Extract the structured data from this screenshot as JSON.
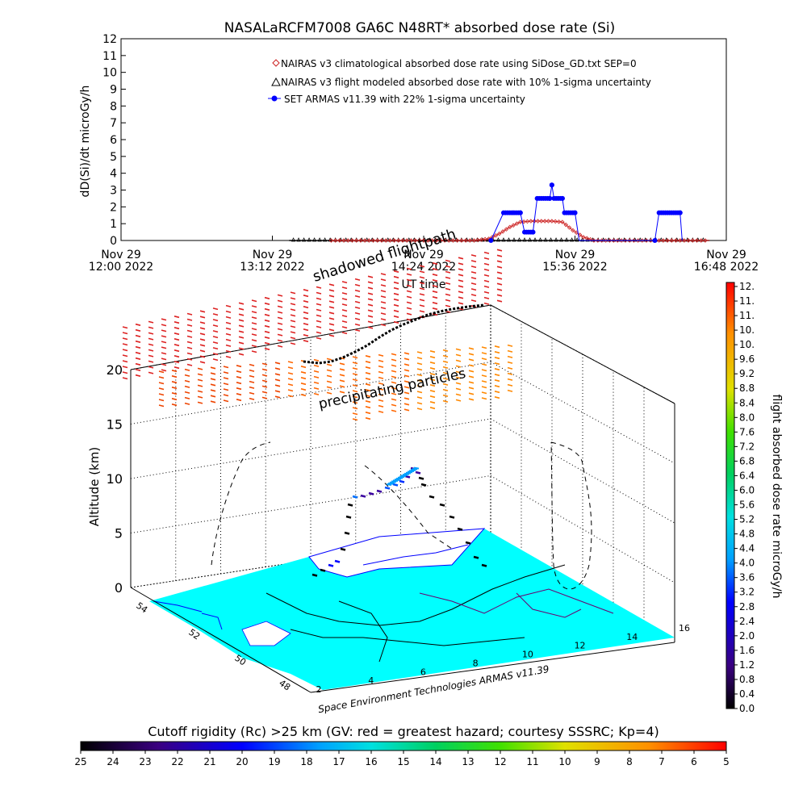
{
  "title": "NASALaRCFM7008  GA6C N48RT* absorbed dose rate (Si)",
  "chart_data": [
    {
      "type": "line",
      "ylabel": "dD(Si)/dt microGy/h",
      "xlabel": "UT time",
      "ylim": [
        0,
        12
      ],
      "y_ticks": [
        "0",
        "1",
        "2",
        "3",
        "4",
        "5",
        "6",
        "7",
        "8",
        "9",
        "10",
        "11",
        "12"
      ],
      "x_ticks": [
        {
          "top": "Nov 29",
          "bottom": "12:00 2022",
          "t": 720
        },
        {
          "top": "Nov 29",
          "bottom": "13:12 2022",
          "t": 792
        },
        {
          "top": "Nov 29",
          "bottom": "14:24 2022",
          "t": 864
        },
        {
          "top": "Nov 29",
          "bottom": "15:36 2022",
          "t": 936
        },
        {
          "top": "Nov 29",
          "bottom": "16:48 2022",
          "t": 1008
        }
      ],
      "xlim_minutes_utc": [
        720,
        1008
      ],
      "legend_position": "top-center",
      "series": [
        {
          "name": "NAIRAS v3 climatological absorbed dose rate using SiDose_GD.txt SEP=0",
          "marker": "diamond",
          "color": "#cc2222",
          "points": [
            [
              820,
              0
            ],
            [
              830,
              0
            ],
            [
              840,
              0
            ],
            [
              850,
              0
            ],
            [
              860,
              0
            ],
            [
              870,
              0
            ],
            [
              880,
              0
            ],
            [
              888,
              0
            ],
            [
              895,
              0.1
            ],
            [
              900,
              0.4
            ],
            [
              905,
              0.8
            ],
            [
              910,
              1.1
            ],
            [
              915,
              1.15
            ],
            [
              920,
              1.15
            ],
            [
              925,
              1.15
            ],
            [
              930,
              1.1
            ],
            [
              935,
              0.6
            ],
            [
              940,
              0.2
            ],
            [
              945,
              0
            ],
            [
              960,
              0
            ],
            [
              980,
              0
            ],
            [
              1000,
              0
            ]
          ]
        },
        {
          "name": "NAIRAS v3 flight modeled absorbed dose rate with 10% 1-sigma uncertainty",
          "marker": "triangle",
          "color": "#000000",
          "points": [
            [
              820,
              0
            ],
            [
              860,
              0
            ],
            [
              900,
              0
            ],
            [
              940,
              0
            ],
            [
              980,
              0
            ],
            [
              1000,
              0
            ]
          ]
        },
        {
          "name": "SET ARMAS v11.39 with 22% 1-sigma uncertainty",
          "marker": "circle",
          "color": "#0000ff",
          "points": [
            [
              896,
              0
            ],
            [
              902,
              1.65
            ],
            [
              910,
              1.65
            ],
            [
              912,
              0.5
            ],
            [
              916,
              0.5
            ],
            [
              918,
              2.5
            ],
            [
              924,
              2.5
            ],
            [
              925,
              3.3
            ],
            [
              926,
              2.5
            ],
            [
              930,
              2.5
            ],
            [
              931,
              1.65
            ],
            [
              936,
              1.65
            ],
            [
              938,
              0
            ],
            [
              960,
              0
            ],
            [
              974,
              0
            ],
            [
              976,
              1.65
            ],
            [
              986,
              1.65
            ],
            [
              987,
              0
            ]
          ]
        }
      ]
    },
    {
      "type": "scatter",
      "zlabel": "Altitude (km)",
      "zlim": [
        0,
        20
      ],
      "z_ticks": [
        "0",
        "5",
        "10",
        "15",
        "20"
      ],
      "lat_ticks": [
        "54",
        "52",
        "50",
        "48"
      ],
      "lon_ticks": [
        "2",
        "4",
        "6",
        "8",
        "10",
        "12",
        "14",
        "16"
      ],
      "annotations": [
        "shadowed flightpath",
        "precipitating particles"
      ],
      "watermark": "Space Environment Technologies ARMAS v11.39",
      "flight_altitude_km": [
        [
          4.5,
          2.1
        ],
        [
          4.1,
          3.2
        ],
        [
          3.8,
          5.0
        ],
        [
          3.6,
          7.2
        ],
        [
          3.7,
          8.4
        ],
        [
          4.2,
          9.3
        ],
        [
          5.2,
          10.2
        ],
        [
          6.0,
          10.8
        ],
        [
          6.8,
          11.0
        ],
        [
          7.3,
          10.2
        ],
        [
          7.6,
          8.0
        ],
        [
          7.9,
          5.2
        ],
        [
          8.3,
          2.9
        ],
        [
          8.8,
          1.5
        ],
        [
          9.3,
          0.8
        ]
      ],
      "colorbar": {
        "label": "flight absorbed dose rate microGy/h",
        "min": 0.0,
        "max": 12.0,
        "ticks": [
          "12.",
          "11.",
          "11.",
          "10.",
          "10.",
          "9.6",
          "9.2",
          "8.8",
          "8.4",
          "8.0",
          "7.6",
          "7.2",
          "6.8",
          "6.4",
          "6.0",
          "5.6",
          "5.2",
          "4.8",
          "4.4",
          "4.0",
          "3.6",
          "3.2",
          "2.8",
          "2.4",
          "2.0",
          "1.6",
          "1.2",
          "0.8",
          "0.4",
          "0.0"
        ]
      }
    },
    {
      "type": "heatmap",
      "colorbar": {
        "label": "Cutoff rigidity (Rc) >25 km (GV: red = greatest hazard; courtesy SSSRC; Kp=4)",
        "ticks": [
          "25",
          "24",
          "23",
          "22",
          "21",
          "20",
          "19",
          "18",
          "17",
          "16",
          "15",
          "14",
          "13",
          "12",
          "11",
          "10",
          "9",
          "8",
          "7",
          "6",
          "5"
        ],
        "orientation": "horizontal"
      }
    }
  ]
}
